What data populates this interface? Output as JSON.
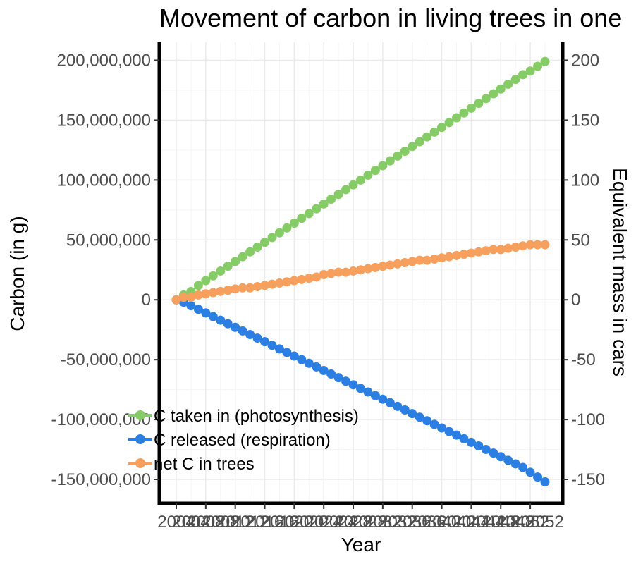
{
  "chart_data": {
    "type": "line",
    "title": "Movement of carbon in living trees in one",
    "xlabel": "Year",
    "ylabel": "Carbon (in g)",
    "y2label": "Equivalent mass in cars",
    "x_start": 2004,
    "x_end": 2054,
    "xticks": [
      "2004",
      "2008",
      "2012",
      "2016",
      "2020",
      "2024",
      "2028",
      "2032",
      "2036",
      "2040",
      "2044",
      "2048",
      "2052"
    ],
    "xticks_secondary": [
      "2004",
      "2008",
      "2012",
      "2016",
      "2020",
      "2024",
      "2028",
      "2032",
      "2036",
      "2040",
      "2044",
      "2048",
      "2052"
    ],
    "ylim": [
      -170000000,
      215000000
    ],
    "yticks": [
      200000000,
      150000000,
      100000000,
      50000000,
      0,
      -50000000,
      -100000000,
      -150000000
    ],
    "yticklabels": [
      "200,000,000",
      "150,000,000",
      "100,000,000",
      "50,000,000",
      "0",
      "-50,000,000",
      "-100,000,000",
      "-150,000,000"
    ],
    "y2ticklabels": [
      "200",
      "150",
      "100",
      "50",
      "0",
      "-50",
      "-100",
      "-150"
    ],
    "grid": true,
    "legend_position": "bottom-left",
    "series": [
      {
        "name": "C taken in (photosynthesis)",
        "color": "#85cc66",
        "values": [
          0,
          4000000,
          7000000,
          12000000,
          16000000,
          20000000,
          24000000,
          28000000,
          32000000,
          36000000,
          40000000,
          44000000,
          48000000,
          52000000,
          56000000,
          60000000,
          64000000,
          68000000,
          72000000,
          76000000,
          80000000,
          84000000,
          88000000,
          92000000,
          96000000,
          100000000,
          104000000,
          108000000,
          112000000,
          116000000,
          120000000,
          124000000,
          128000000,
          132000000,
          136000000,
          140000000,
          144000000,
          148000000,
          152000000,
          156000000,
          160000000,
          164000000,
          168000000,
          172000000,
          176000000,
          180000000,
          184000000,
          188000000,
          191000000,
          195000000,
          199000000
        ]
      },
      {
        "name": "C released (respiration)",
        "color": "#2b7fe2",
        "values": [
          0,
          -2000000,
          -5000000,
          -8000000,
          -11000000,
          -14000000,
          -17000000,
          -20000000,
          -23000000,
          -26000000,
          -29000000,
          -32000000,
          -35000000,
          -38000000,
          -41000000,
          -44000000,
          -47000000,
          -50000000,
          -53000000,
          -56000000,
          -59000000,
          -62000000,
          -65000000,
          -68000000,
          -71000000,
          -74000000,
          -77000000,
          -80000000,
          -83000000,
          -86000000,
          -89000000,
          -92000000,
          -95000000,
          -98000000,
          -101000000,
          -104000000,
          -107000000,
          -110000000,
          -113000000,
          -116000000,
          -119000000,
          -122000000,
          -125000000,
          -128000000,
          -131000000,
          -134000000,
          -137000000,
          -140000000,
          -144000000,
          -148000000,
          -152000000
        ]
      },
      {
        "name": "net C in trees",
        "color": "#f7a05e",
        "values": [
          0,
          2000000,
          2000000,
          4000000,
          5000000,
          6000000,
          7000000,
          8000000,
          9000000,
          10000000,
          10000000,
          11000000,
          12000000,
          13000000,
          14000000,
          15000000,
          16000000,
          17000000,
          18000000,
          19000000,
          21000000,
          22000000,
          23000000,
          23000000,
          24000000,
          25000000,
          26000000,
          27000000,
          28000000,
          29000000,
          30000000,
          31000000,
          32000000,
          33000000,
          33000000,
          34000000,
          35000000,
          36000000,
          37000000,
          38000000,
          39000000,
          40000000,
          41000000,
          42000000,
          42000000,
          43000000,
          44000000,
          45000000,
          46000000,
          46000000,
          46000000
        ]
      }
    ]
  }
}
